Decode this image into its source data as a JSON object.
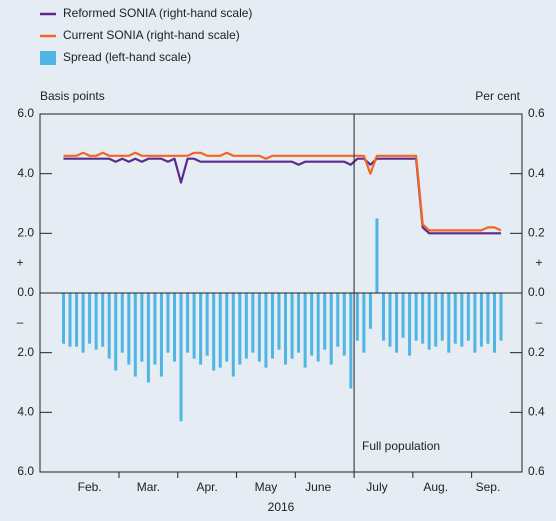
{
  "chart_data": {
    "type": "combo",
    "y_title": "Basis points",
    "y2_title": "Per cent",
    "xlabel": "2016",
    "annotation": "Full population",
    "sign_labels": {
      "positive": "+",
      "negative": "–"
    },
    "categories": [
      null,
      null,
      null,
      null,
      "Feb.",
      null,
      null,
      null,
      null,
      null,
      null,
      null,
      null,
      "Mar.",
      null,
      null,
      null,
      null,
      null,
      null,
      null,
      null,
      "Apr.",
      null,
      null,
      null,
      null,
      null,
      null,
      null,
      null,
      "May",
      null,
      null,
      null,
      null,
      null,
      null,
      null,
      "June",
      null,
      null,
      null,
      null,
      null,
      null,
      null,
      null,
      "July",
      null,
      null,
      null,
      null,
      null,
      null,
      null,
      null,
      "Aug.",
      null,
      null,
      null,
      null,
      null,
      null,
      null,
      "Sep.",
      null,
      null
    ],
    "ylim": [
      -6,
      6
    ],
    "yticks": [
      {
        "value": 6,
        "label": "6.0"
      },
      {
        "value": 4,
        "label": "4.0"
      },
      {
        "value": 2,
        "label": "2.0"
      },
      {
        "value": 0,
        "label": "0.0"
      },
      {
        "value": -2,
        "label": "2.0"
      },
      {
        "value": -4,
        "label": "4.0"
      },
      {
        "value": -6,
        "label": "6.0"
      }
    ],
    "y2lim": [
      -0.6,
      0.6
    ],
    "y2ticks": [
      {
        "value": 0.6,
        "label": "0.6"
      },
      {
        "value": 0.4,
        "label": "0.4"
      },
      {
        "value": 0.2,
        "label": "0.2"
      },
      {
        "value": 0,
        "label": "0.0"
      },
      {
        "value": -0.2,
        "label": "0.2"
      },
      {
        "value": -0.4,
        "label": "0.4"
      },
      {
        "value": -0.6,
        "label": "0.6"
      }
    ],
    "series": [
      {
        "name": "Reformed SONIA (right-hand scale)",
        "type": "line",
        "axis": "y2",
        "color": "#5b2a8e",
        "values": [
          0.45,
          0.45,
          0.45,
          0.45,
          0.45,
          0.45,
          0.45,
          0.45,
          0.44,
          0.45,
          0.44,
          0.45,
          0.44,
          0.45,
          0.45,
          0.45,
          0.44,
          0.45,
          0.37,
          0.45,
          0.45,
          0.44,
          0.44,
          0.44,
          0.44,
          0.44,
          0.44,
          0.44,
          0.44,
          0.44,
          0.44,
          0.44,
          0.44,
          0.44,
          0.44,
          0.44,
          0.43,
          0.44,
          0.44,
          0.44,
          0.44,
          0.44,
          0.44,
          0.44,
          0.43,
          0.45,
          0.45,
          0.43,
          0.45,
          0.45,
          0.45,
          0.45,
          0.45,
          0.45,
          0.45,
          0.22,
          0.2,
          0.2,
          0.2,
          0.2,
          0.2,
          0.2,
          0.2,
          0.2,
          0.2,
          0.2,
          0.2,
          0.2
        ]
      },
      {
        "name": "Current SONIA (right-hand scale)",
        "type": "line",
        "axis": "y2",
        "color": "#f26522",
        "values": [
          0.46,
          0.46,
          0.46,
          0.47,
          0.46,
          0.46,
          0.47,
          0.46,
          0.46,
          0.46,
          0.46,
          0.47,
          0.46,
          0.46,
          0.46,
          0.46,
          0.46,
          0.46,
          0.46,
          0.46,
          0.47,
          0.47,
          0.46,
          0.46,
          0.46,
          0.47,
          0.46,
          0.46,
          0.46,
          0.46,
          0.46,
          0.45,
          0.46,
          0.46,
          0.46,
          0.46,
          0.46,
          0.46,
          0.46,
          0.46,
          0.46,
          0.46,
          0.46,
          0.46,
          0.46,
          0.46,
          0.46,
          0.4,
          0.46,
          0.46,
          0.46,
          0.46,
          0.46,
          0.46,
          0.46,
          0.23,
          0.21,
          0.21,
          0.21,
          0.21,
          0.21,
          0.21,
          0.21,
          0.21,
          0.21,
          0.22,
          0.22,
          0.21
        ]
      },
      {
        "name": "Spread (left-hand scale)",
        "type": "bar",
        "axis": "y",
        "color": "#4fb6e3",
        "values": [
          -1.7,
          -1.8,
          -1.8,
          -2.0,
          -1.7,
          -1.9,
          -1.8,
          -2.2,
          -2.6,
          -2.0,
          -2.4,
          -2.8,
          -2.3,
          -3.0,
          -2.4,
          -2.8,
          -2.0,
          -2.3,
          -4.3,
          -2.0,
          -2.2,
          -2.4,
          -2.1,
          -2.6,
          -2.5,
          -2.3,
          -2.8,
          -2.4,
          -2.2,
          -2.0,
          -2.3,
          -2.5,
          -2.2,
          -1.9,
          -2.4,
          -2.2,
          -2.0,
          -2.5,
          -2.1,
          -2.3,
          -1.9,
          -2.4,
          -1.8,
          -2.1,
          -3.2,
          -1.6,
          -2.0,
          -1.2,
          2.5,
          -1.6,
          -1.8,
          -2.0,
          -1.5,
          -2.1,
          -1.6,
          -1.7,
          -1.9,
          -1.8,
          -1.6,
          -2.0,
          -1.7,
          -1.8,
          -1.6,
          -2.0,
          -1.8,
          -1.7,
          -2.0,
          -1.6
        ]
      }
    ]
  }
}
